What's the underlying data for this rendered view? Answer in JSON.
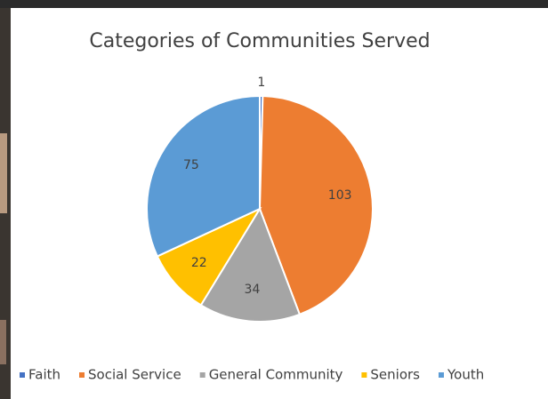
{
  "chart_data": {
    "type": "pie",
    "title": "Categories of Communities Served",
    "categories": [
      "Faith",
      "Social Service",
      "General Community",
      "Seniors",
      "Youth"
    ],
    "values": [
      1,
      103,
      34,
      22,
      75
    ],
    "colors": [
      "#4472c4",
      "#ed7d31",
      "#a5a5a5",
      "#ffc000",
      "#5b9bd5"
    ],
    "legend": "bottom"
  }
}
